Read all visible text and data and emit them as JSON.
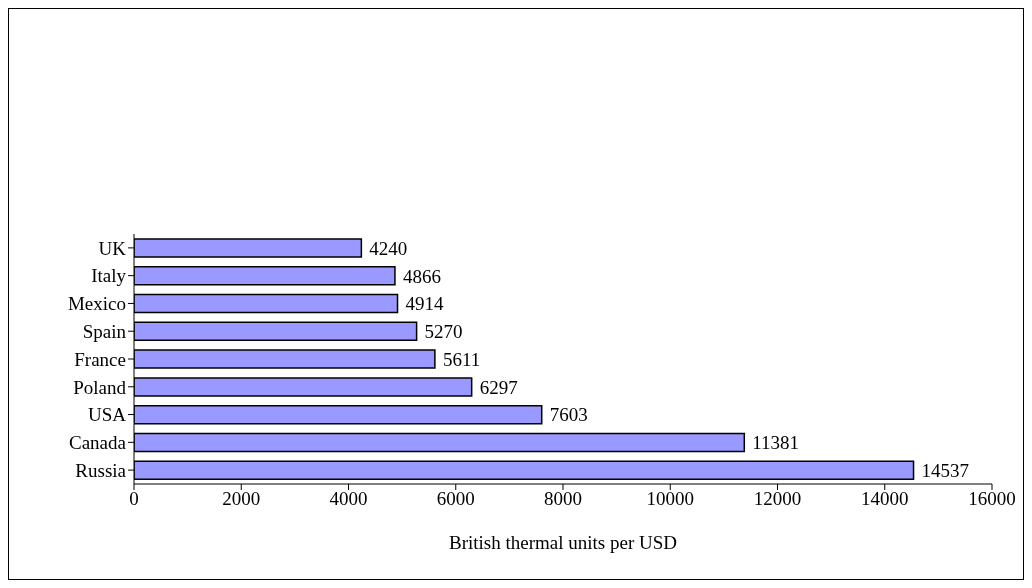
{
  "chart_data": {
    "type": "bar",
    "orientation": "horizontal",
    "xlabel": "British thermal units per USD",
    "categories": [
      "UK",
      "Italy",
      "Mexico",
      "Spain",
      "France",
      "Poland",
      "USA",
      "Canada",
      "Russia"
    ],
    "values": [
      4240,
      4866,
      4914,
      5270,
      5611,
      6297,
      7603,
      11381,
      14537
    ],
    "color": "#9999ff",
    "xlim": [
      0,
      16000
    ],
    "xticks": [
      0,
      2000,
      4000,
      6000,
      8000,
      10000,
      12000,
      14000,
      16000
    ],
    "data_labels": true
  }
}
